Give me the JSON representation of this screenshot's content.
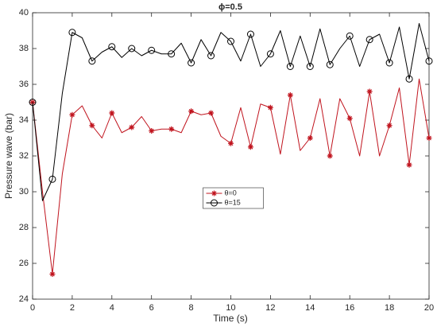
{
  "chart_data": {
    "type": "line",
    "title": "ϕ=0.5",
    "xlabel": "Time (s)",
    "ylabel": "Pressure wave (bar)",
    "x": [
      0,
      0.5,
      1,
      1.5,
      2,
      2.5,
      3,
      3.5,
      4,
      4.5,
      5,
      5.5,
      6,
      6.5,
      7,
      7.5,
      8,
      8.5,
      9,
      9.5,
      10,
      10.5,
      11,
      11.5,
      12,
      12.5,
      13,
      13.5,
      14,
      14.5,
      15,
      15.5,
      16,
      16.5,
      17,
      17.5,
      18,
      18.5,
      19,
      19.5,
      20
    ],
    "markevery": 2,
    "series": [
      {
        "name": "θ=0",
        "color": "#c0141e",
        "marker": "asterisk",
        "values": [
          35,
          30,
          25.4,
          31,
          34.3,
          34.8,
          33.7,
          33.0,
          34.4,
          33.3,
          33.6,
          34.2,
          33.4,
          33.5,
          33.5,
          33.3,
          34.5,
          34.3,
          34.4,
          33.1,
          32.7,
          34.7,
          32.5,
          34.9,
          34.7,
          32.1,
          35.4,
          32.3,
          33.0,
          35.2,
          32.0,
          35.2,
          34.1,
          32.0,
          35.6,
          32.0,
          33.7,
          35.8,
          31.5,
          36.3,
          33.0
        ]
      },
      {
        "name": "θ=15",
        "color": "#000000",
        "marker": "circle",
        "values": [
          35,
          29.5,
          30.7,
          35.5,
          38.9,
          38.6,
          37.3,
          37.8,
          38.1,
          37.5,
          38.0,
          37.6,
          37.9,
          37.7,
          37.7,
          38.3,
          37.2,
          38.5,
          37.6,
          38.9,
          38.4,
          37.3,
          38.8,
          37.0,
          37.7,
          39.0,
          37.0,
          38.7,
          37.0,
          39.1,
          37.1,
          38.0,
          38.7,
          37.0,
          38.5,
          38.8,
          37.2,
          39.2,
          36.3,
          39.4,
          37.3
        ]
      }
    ],
    "xlim": [
      0,
      20
    ],
    "xticks": [
      0,
      2,
      4,
      6,
      8,
      10,
      12,
      14,
      16,
      18,
      20
    ],
    "ylim": [
      24,
      40
    ],
    "yticks": [
      24,
      26,
      28,
      30,
      32,
      34,
      36,
      38,
      40
    ],
    "grid": false,
    "legend": "center"
  }
}
